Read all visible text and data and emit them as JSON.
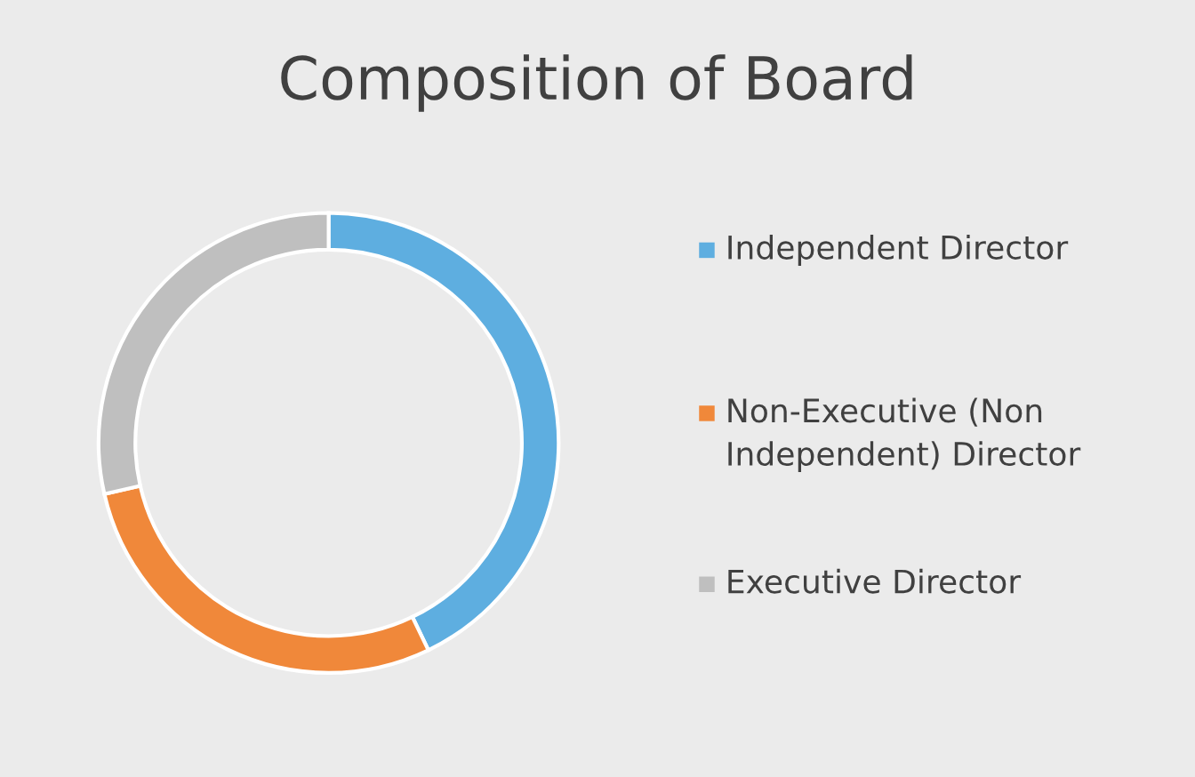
{
  "chart_data": {
    "type": "donut",
    "title": "Composition of Board",
    "categories": [
      "Independent Director",
      "Non-Executive (Non Independent) Director",
      "Executive Director"
    ],
    "values": [
      42.86,
      28.57,
      28.57
    ],
    "colors": [
      "#5eaee0",
      "#f0883a",
      "#bfbfbf"
    ],
    "legend": "right"
  }
}
